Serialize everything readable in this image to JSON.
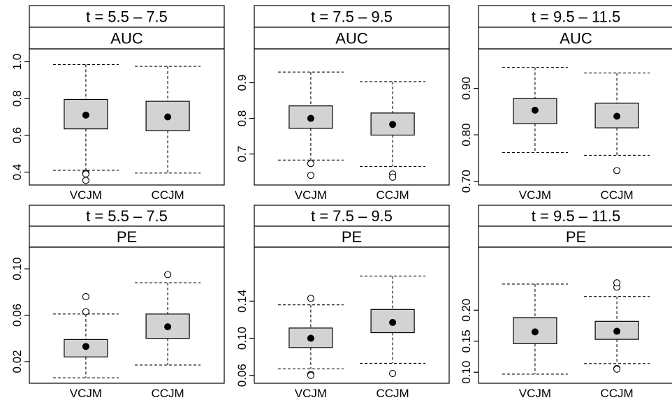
{
  "chart_data": [
    {
      "type": "boxplot",
      "time_window": "t = 5.5 – 7.5",
      "metric": "AUC",
      "categories": [
        "VCJM",
        "CCJM"
      ],
      "ylim": [
        0.33,
        1.07
      ],
      "yticks": [
        0.4,
        0.6,
        0.8,
        1.0
      ],
      "ytick_labels": [
        "0.4",
        "0.6",
        "0.8",
        "1.0"
      ],
      "boxes": [
        {
          "whisker_low": 0.41,
          "q1": 0.635,
          "mean": 0.71,
          "q3": 0.795,
          "whisker_high": 0.985,
          "outliers": [
            0.395,
            0.39,
            0.355
          ]
        },
        {
          "whisker_low": 0.395,
          "q1": 0.625,
          "mean": 0.7,
          "q3": 0.785,
          "whisker_high": 0.975,
          "outliers": []
        }
      ]
    },
    {
      "type": "boxplot",
      "time_window": "t = 7.5 – 9.5",
      "metric": "AUC",
      "categories": [
        "VCJM",
        "CCJM"
      ],
      "ylim": [
        0.613,
        0.995
      ],
      "yticks": [
        0.7,
        0.8,
        0.9
      ],
      "ytick_labels": [
        "0.7",
        "0.8",
        "0.9"
      ],
      "boxes": [
        {
          "whisker_low": 0.683,
          "q1": 0.772,
          "mean": 0.8,
          "q3": 0.835,
          "whisker_high": 0.93,
          "outliers": [
            0.673,
            0.64
          ]
        },
        {
          "whisker_low": 0.665,
          "q1": 0.753,
          "mean": 0.783,
          "q3": 0.815,
          "whisker_high": 0.903,
          "outliers": [
            0.644,
            0.635
          ]
        }
      ]
    },
    {
      "type": "boxplot",
      "time_window": "t = 9.5 – 11.5",
      "metric": "AUC",
      "categories": [
        "VCJM",
        "CCJM"
      ],
      "ylim": [
        0.692,
        0.985
      ],
      "yticks": [
        0.7,
        0.8,
        0.9
      ],
      "ytick_labels": [
        "0.70",
        "0.80",
        "0.90"
      ],
      "boxes": [
        {
          "whisker_low": 0.762,
          "q1": 0.824,
          "mean": 0.853,
          "q3": 0.878,
          "whisker_high": 0.945,
          "outliers": []
        },
        {
          "whisker_low": 0.756,
          "q1": 0.815,
          "mean": 0.84,
          "q3": 0.868,
          "whisker_high": 0.933,
          "outliers": [
            0.723
          ]
        }
      ]
    },
    {
      "type": "boxplot",
      "time_window": "t = 5.5 – 7.5",
      "metric": "PE",
      "categories": [
        "VCJM",
        "CCJM"
      ],
      "ylim": [
        0.0013,
        0.1187
      ],
      "yticks": [
        0.02,
        0.06,
        0.1
      ],
      "ytick_labels": [
        "0.02",
        "0.06",
        "0.10"
      ],
      "boxes": [
        {
          "whisker_low": 0.006,
          "q1": 0.024,
          "mean": 0.033,
          "q3": 0.039,
          "whisker_high": 0.061,
          "outliers": [
            0.063,
            0.076
          ]
        },
        {
          "whisker_low": 0.017,
          "q1": 0.04,
          "mean": 0.05,
          "q3": 0.061,
          "whisker_high": 0.088,
          "outliers": [
            0.095
          ]
        }
      ]
    },
    {
      "type": "boxplot",
      "time_window": "t = 7.5 – 9.5",
      "metric": "PE",
      "categories": [
        "VCJM",
        "CCJM"
      ],
      "ylim": [
        0.0515,
        0.1982
      ],
      "yticks": [
        0.06,
        0.1,
        0.14
      ],
      "ytick_labels": [
        "0.06",
        "0.10",
        "0.14"
      ],
      "boxes": [
        {
          "whisker_low": 0.067,
          "q1": 0.09,
          "mean": 0.1,
          "q3": 0.111,
          "whisker_high": 0.136,
          "outliers": [
            0.061,
            0.06,
            0.143
          ]
        },
        {
          "whisker_low": 0.073,
          "q1": 0.106,
          "mean": 0.117,
          "q3": 0.131,
          "whisker_high": 0.167,
          "outliers": [
            0.062
          ]
        }
      ]
    },
    {
      "type": "boxplot",
      "time_window": "t = 9.5 – 11.5",
      "metric": "PE",
      "categories": [
        "VCJM",
        "CCJM"
      ],
      "ylim": [
        0.0823,
        0.3015
      ],
      "yticks": [
        0.1,
        0.15,
        0.2
      ],
      "ytick_labels": [
        "0.10",
        "0.15",
        "0.20"
      ],
      "boxes": [
        {
          "whisker_low": 0.097,
          "q1": 0.146,
          "mean": 0.165,
          "q3": 0.188,
          "whisker_high": 0.242,
          "outliers": []
        },
        {
          "whisker_low": 0.114,
          "q1": 0.153,
          "mean": 0.166,
          "q3": 0.182,
          "whisker_high": 0.222,
          "outliers": [
            0.106,
            0.105,
            0.237,
            0.244
          ]
        }
      ]
    }
  ],
  "colors": {
    "box_fill": "#d3d3d3",
    "stroke": "#000000",
    "background": "#ffffff"
  }
}
